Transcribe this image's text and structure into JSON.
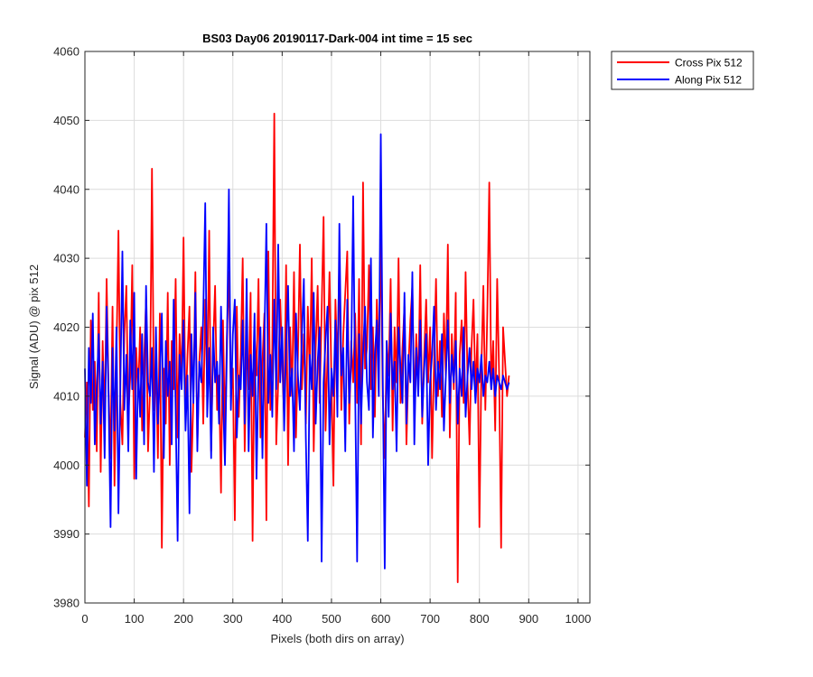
{
  "chart_data": {
    "type": "line",
    "title": "BS03 Day06 20190117-Dark-004 int time = 15 sec",
    "xlabel": "Pixels (both dirs on array)",
    "ylabel": "Signal (ADU) @ pix 512",
    "xlim": [
      0,
      1024
    ],
    "ylim": [
      3980,
      4060
    ],
    "xticks": [
      "0",
      "100",
      "200",
      "300",
      "400",
      "500",
      "600",
      "700",
      "800",
      "900",
      "1000"
    ],
    "xtick_values": [
      0,
      100,
      200,
      300,
      400,
      500,
      600,
      700,
      800,
      900,
      1000
    ],
    "yticks": [
      "3980",
      "3990",
      "4000",
      "4010",
      "4020",
      "4030",
      "4040",
      "4050",
      "4060"
    ],
    "ytick_values": [
      3980,
      3990,
      4000,
      4010,
      4020,
      4030,
      4040,
      4050,
      4060
    ],
    "grid": true,
    "legend_position": "outside-top-right",
    "x_step": 4,
    "series": [
      {
        "name": "Cross Pix 512",
        "color": "#ff0000",
        "values": [
          4004,
          4012,
          3994,
          4021,
          4008,
          4015,
          4002,
          4025,
          3999,
          4018,
          4006,
          4027,
          4011,
          4001,
          4023,
          3997,
          4016,
          4034,
          4009,
          4003,
          4019,
          4026,
          4007,
          4013,
          4029,
          3998,
          4017,
          4010,
          4020,
          4005,
          4015,
          4024,
          4002,
          4011,
          4043,
          4008,
          4016,
          4001,
          4022,
          3988,
          4014,
          4006,
          4025,
          4000,
          4018,
          4011,
          4027,
          4004,
          4019,
          4012,
          4033,
          4007,
          4016,
          4023,
          3999,
          4010,
          4028,
          4003,
          4015,
          4020,
          4006,
          4024,
          4011,
          4034,
          4002,
          4017,
          4026,
          4008,
          4013,
          3996,
          4021,
          4005,
          4019,
          4028,
          4010,
          4014,
          3992,
          4023,
          4007,
          4016,
          4030,
          4002,
          4018,
          4011,
          4025,
          3989,
          4019,
          4013,
          4027,
          4004,
          4015,
          4022,
          3992,
          4031,
          4008,
          4017,
          4051,
          4003,
          4012,
          4024,
          4015,
          4007,
          4029,
          4000,
          4020,
          4010,
          4028,
          4004,
          4016,
          4032,
          4011,
          4019,
          4006,
          4023,
          4013,
          4030,
          4002,
          4017,
          4026,
          4009,
          4022,
          4036,
          4005,
          4016,
          4028,
          4012,
          3997,
          4024,
          4014,
          4030,
          4008,
          4019,
          4025,
          4031,
          4006,
          4018,
          4012,
          4022,
          4009,
          4027,
          4003,
          4041,
          4014,
          4017,
          4029,
          4011,
          4020,
          4007,
          4024,
          4015,
          4033,
          4010,
          4001,
          4018,
          4013,
          4027,
          4005,
          4020,
          4012,
          4030,
          4009,
          4017,
          4023,
          4003,
          4014,
          4021,
          4026,
          4008,
          4019,
          4011,
          4029,
          4006,
          4016,
          4024,
          4012,
          4020,
          4001,
          4015,
          4027,
          4010,
          4018,
          4007,
          4022,
          4013,
          4032,
          4004,
          4019,
          4011,
          4025,
          3983,
          4016,
          4021,
          4009,
          4028,
          4012,
          4003,
          4017,
          4024,
          4010,
          4019,
          3991,
          4014,
          4026,
          4008,
          4022,
          4041,
          4011,
          4018,
          4005,
          4027,
          4013,
          3988,
          4020,
          4015,
          4010,
          4013
        ]
      },
      {
        "name": "Along Pix 512",
        "color": "#0000ff",
        "values": [
          4014,
          3997,
          4017,
          4009,
          4022,
          4003,
          4011,
          4019,
          4006,
          4015,
          4001,
          4023,
          4010,
          3991,
          4017,
          4005,
          4020,
          3993,
          4012,
          4031,
          4008,
          4016,
          4002,
          4021,
          4011,
          4025,
          3998,
          4014,
          4007,
          4019,
          4003,
          4026,
          4012,
          4010,
          4017,
          3999,
          4020,
          4006,
          4013,
          4022,
          4001,
          4018,
          4010,
          4015,
          4003,
          4024,
          4008,
          3989,
          4016,
          4011,
          4021,
          4005,
          4013,
          3993,
          4019,
          4009,
          4025,
          4002,
          4015,
          4012,
          4022,
          4038,
          4007,
          4017,
          4001,
          4020,
          4012,
          4015,
          4006,
          4023,
          4010,
          4000,
          4017,
          4040,
          4008,
          4019,
          4024,
          4004,
          4013,
          4011,
          4021,
          4006,
          4027,
          4002,
          4016,
          4010,
          4022,
          3998,
          4014,
          4020,
          4001,
          4018,
          4035,
          4009,
          4016,
          4007,
          4024,
          4011,
          4032,
          4012,
          4020,
          4005,
          4017,
          4026,
          4010,
          4014,
          4002,
          4022,
          4013,
          4008,
          4019,
          4027,
          4004,
          3989,
          4016,
          4011,
          4025,
          4006,
          4015,
          4020,
          3986,
          4012,
          4018,
          4023,
          4003,
          4014,
          4010,
          4021,
          4007,
          4035,
          4013,
          4017,
          4002,
          4024,
          4009,
          4015,
          4039,
          4011,
          3986,
          4019,
          4006,
          4016,
          4023,
          4012,
          4008,
          4030,
          4004,
          4016,
          4021,
          4010,
          4048,
          4013,
          3985,
          4018,
          4007,
          4022,
          4011,
          4015,
          4002,
          4020,
          4014,
          4009,
          4025,
          4006,
          4016,
          4012,
          4028,
          4003,
          4017,
          4010,
          4021,
          4007,
          4014,
          4019,
          4000,
          4012,
          4016,
          4023,
          4008,
          4015,
          4011,
          4019,
          4005,
          4013,
          4021,
          4009,
          4016,
          4012,
          4018,
          4006,
          4014,
          4010,
          4020,
          4007,
          4013,
          4017,
          4011,
          4015,
          4009,
          4014,
          4012,
          4016,
          4010,
          4013,
          4012,
          4015,
          4011,
          4014,
          4010,
          4013,
          4012,
          4011,
          4013,
          4012,
          4011,
          4012
        ]
      }
    ]
  }
}
